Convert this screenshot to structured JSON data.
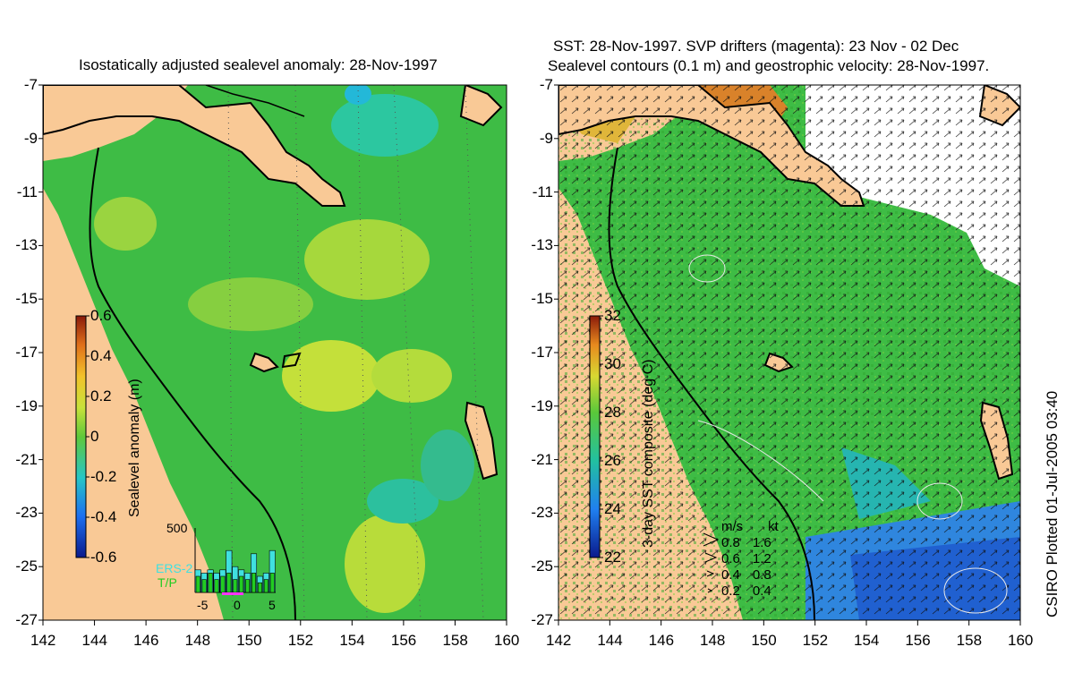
{
  "left_title": "Isostatically adjusted sealevel anomaly: 28-Nov-1997",
  "right_title_line1": "SST: 28-Nov-1997. SVP drifters (magenta): 23 Nov - 02 Dec",
  "right_title_line2": "Sealevel contours (0.1 m) and geostrophic velocity: 28-Nov-1997.",
  "side_label": "CSIRO Plotted 01-Jul-2005 03:40",
  "axes": {
    "x_ticks": [
      "142",
      "144",
      "146",
      "148",
      "150",
      "152",
      "154",
      "156",
      "158",
      "160"
    ],
    "y_ticks": [
      "-7",
      "-9",
      "-11",
      "-13",
      "-15",
      "-17",
      "-19",
      "-21",
      "-23",
      "-25",
      "-27"
    ]
  },
  "left_colorbar": {
    "label": "Sealevel anomaly (m)",
    "ticks": [
      "0.6",
      "0.4",
      "0.2",
      "0",
      "-0.2",
      "-0.4",
      "-0.6"
    ]
  },
  "right_colorbar": {
    "label": "3-day SST composite (deg C)",
    "ticks": [
      "32",
      "30",
      "28",
      "26",
      "24",
      "22"
    ]
  },
  "inset_histogram": {
    "y_label": "500",
    "x_ticks": [
      "-5",
      "0",
      "5"
    ],
    "legend_ers2": "ERS-2",
    "legend_tp": "T/P",
    "ers2_color": "#40e0e0",
    "tp_color": "#22cc22",
    "ers2_values": [
      0.35,
      0.3,
      0.35,
      0.3,
      0.35,
      0.65,
      0.4,
      0.35,
      0.3,
      0.6,
      0.25,
      0.3,
      0.65
    ],
    "tp_values": [
      0.25,
      0.2,
      0.3,
      0.2,
      0.25,
      0.3,
      0.2,
      0.25,
      0.2,
      0.3,
      0.15,
      0.2,
      0.3
    ]
  },
  "velocity_legend": {
    "header_ms": "m/s",
    "header_kt": "kt",
    "rows": [
      {
        "ms": "0.8",
        "kt": "1.6"
      },
      {
        "ms": "0.6",
        "kt": "1.2"
      },
      {
        "ms": "0.4",
        "kt": "0.8"
      },
      {
        "ms": "0.2",
        "kt": "0.4"
      }
    ]
  },
  "colors": {
    "land": "#f9c996",
    "ocean_green": "#3dbb3d",
    "ocean_cyan": "#29c49a",
    "highlight_yellow": "#c9e23a",
    "cloud_white": "#ffffff",
    "cool_blue": "#2b7fdb",
    "warm_orange": "#e48a1e"
  }
}
